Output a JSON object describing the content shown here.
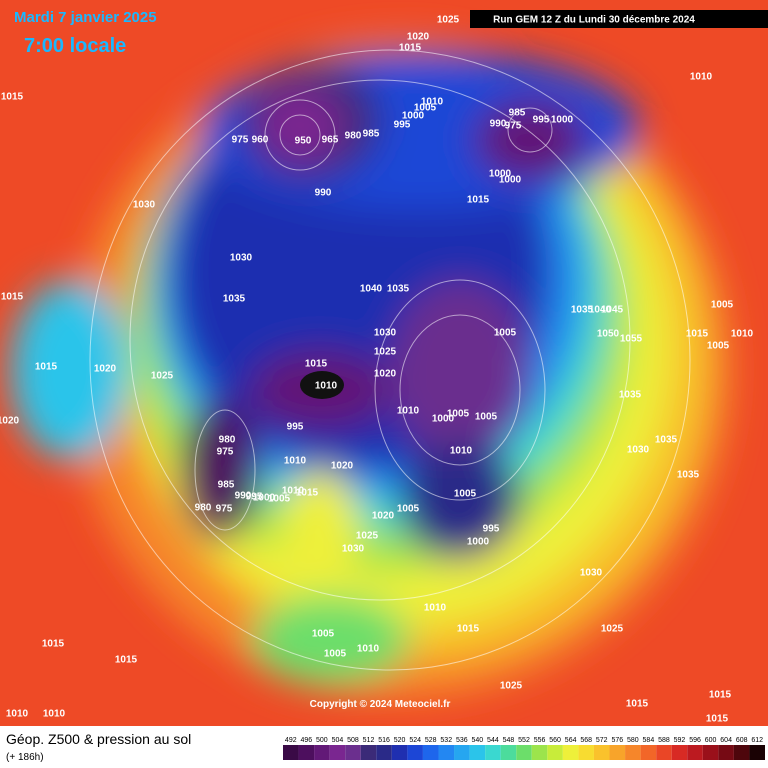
{
  "header": {
    "date": "Mardi 7 janvier 2025",
    "time": "7:00 locale",
    "run": "Run GEM 12 Z du Lundi 30 décembre 2024"
  },
  "map": {
    "isobar_labels": [
      1025,
      1020,
      1015,
      1010,
      1015,
      1010,
      1005,
      1000,
      995,
      985,
      990,
      975,
      995,
      1000,
      975,
      960,
      950,
      965,
      980,
      985,
      990,
      1015,
      1000,
      1000,
      1030,
      1030,
      1040,
      1035,
      1035,
      1015,
      1035,
      1040,
      1045,
      1005,
      1005,
      1030,
      1015,
      1010,
      1050,
      1055,
      1005,
      1025,
      1015,
      1020,
      1015,
      1020,
      1025,
      1010,
      1035,
      1010,
      1005,
      1005,
      1000,
      1020,
      980,
      975,
      995,
      1035,
      1030,
      1010,
      1010,
      1020,
      1035,
      985,
      990,
      995,
      1000,
      1005,
      1010,
      1015,
      1005,
      980,
      975,
      1005,
      995,
      1020,
      1025,
      1000,
      1030,
      1030,
      1010,
      1015,
      1025,
      1005,
      1005,
      1010,
      1015,
      1015,
      1025,
      1015,
      1015,
      1015,
      1010,
      1010
    ],
    "copyright": "Copyright © 2024 Meteociel.fr"
  },
  "footer": {
    "title": "Géop. Z500 & pression au sol",
    "subtitle": "(+ 186h)"
  },
  "legend": {
    "values": [
      492,
      496,
      500,
      504,
      508,
      512,
      516,
      520,
      524,
      528,
      532,
      536,
      540,
      544,
      548,
      552,
      556,
      560,
      564,
      568,
      572,
      576,
      580,
      584,
      588,
      592,
      596,
      600,
      604,
      608,
      612
    ],
    "colors": [
      "#3a0a46",
      "#4d0f5e",
      "#621977",
      "#7a2690",
      "#6b2f8e",
      "#3b2a78",
      "#2a2a88",
      "#1f2fb0",
      "#1c46d6",
      "#1e66ec",
      "#2387f2",
      "#26a6f0",
      "#2bc4ea",
      "#3ad8d0",
      "#4cdc9c",
      "#6cde6a",
      "#9ce44c",
      "#c8ec3a",
      "#eef03a",
      "#f8dc30",
      "#fac22c",
      "#f8a42a",
      "#f6862a",
      "#f26628",
      "#ea4626",
      "#d82a24",
      "#bc1a20",
      "#9a101a",
      "#760a14",
      "#4e060c",
      "#1a0204"
    ]
  }
}
